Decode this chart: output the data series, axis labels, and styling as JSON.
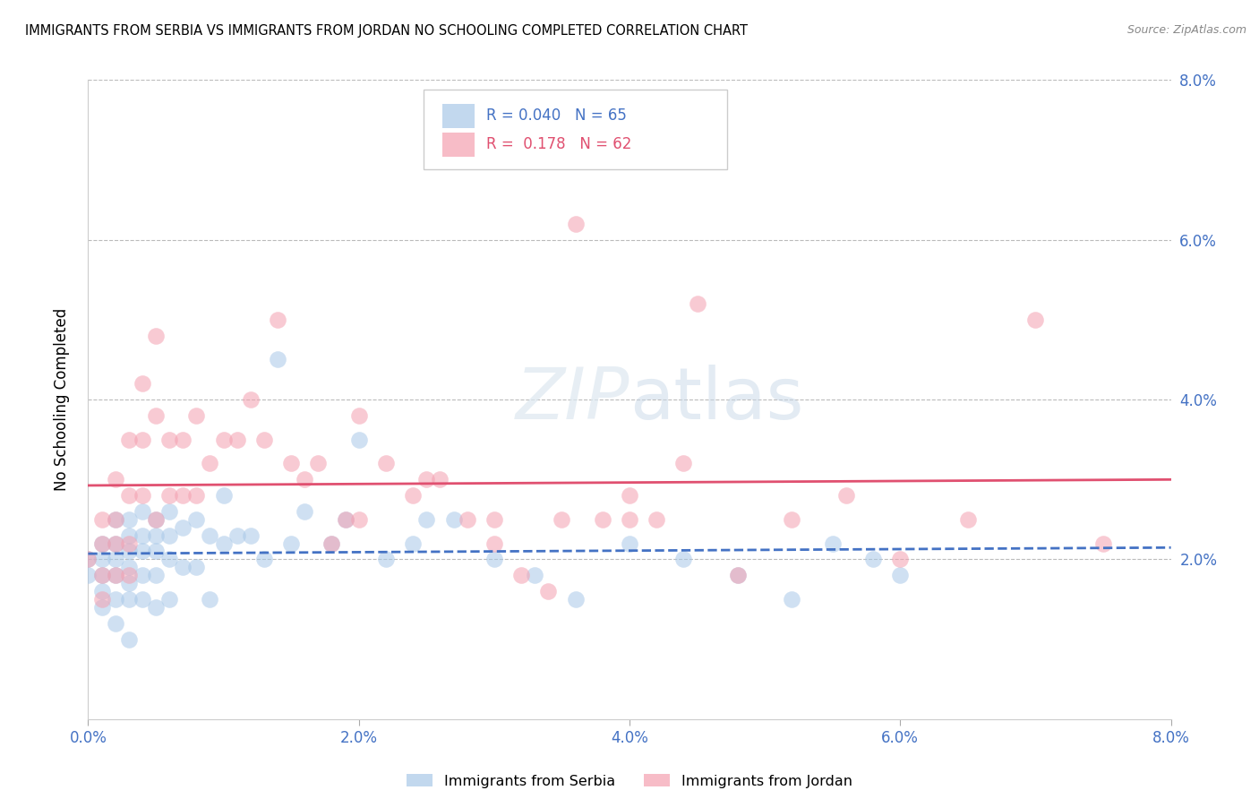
{
  "title": "IMMIGRANTS FROM SERBIA VS IMMIGRANTS FROM JORDAN NO SCHOOLING COMPLETED CORRELATION CHART",
  "source": "Source: ZipAtlas.com",
  "ylabel": "No Schooling Completed",
  "xlim": [
    0.0,
    0.08
  ],
  "ylim": [
    0.0,
    0.08
  ],
  "x_ticks": [
    0.0,
    0.02,
    0.04,
    0.06,
    0.08
  ],
  "y_ticks": [
    0.0,
    0.02,
    0.04,
    0.06,
    0.08
  ],
  "series1_color": "#a8c8e8",
  "series2_color": "#f4a0b0",
  "series1_label": "Immigrants from Serbia",
  "series2_label": "Immigrants from Jordan",
  "series1_R": 0.04,
  "series1_N": 65,
  "series2_R": 0.178,
  "series2_N": 62,
  "trend1_color": "#4472c4",
  "trend2_color": "#e05070",
  "watermark": "ZIPatlas",
  "background_color": "#ffffff",
  "grid_color": "#bbbbbb",
  "series1_x": [
    0.0,
    0.0,
    0.001,
    0.001,
    0.001,
    0.001,
    0.001,
    0.002,
    0.002,
    0.002,
    0.002,
    0.002,
    0.002,
    0.003,
    0.003,
    0.003,
    0.003,
    0.003,
    0.003,
    0.003,
    0.004,
    0.004,
    0.004,
    0.004,
    0.004,
    0.005,
    0.005,
    0.005,
    0.005,
    0.005,
    0.006,
    0.006,
    0.006,
    0.006,
    0.007,
    0.007,
    0.008,
    0.008,
    0.009,
    0.009,
    0.01,
    0.01,
    0.011,
    0.012,
    0.013,
    0.014,
    0.015,
    0.016,
    0.018,
    0.019,
    0.02,
    0.022,
    0.024,
    0.025,
    0.027,
    0.03,
    0.033,
    0.036,
    0.04,
    0.044,
    0.048,
    0.052,
    0.055,
    0.058,
    0.06
  ],
  "series1_y": [
    0.02,
    0.018,
    0.022,
    0.02,
    0.018,
    0.016,
    0.014,
    0.025,
    0.022,
    0.02,
    0.018,
    0.015,
    0.012,
    0.025,
    0.023,
    0.021,
    0.019,
    0.017,
    0.015,
    0.01,
    0.026,
    0.023,
    0.021,
    0.018,
    0.015,
    0.025,
    0.023,
    0.021,
    0.018,
    0.014,
    0.026,
    0.023,
    0.02,
    0.015,
    0.024,
    0.019,
    0.025,
    0.019,
    0.023,
    0.015,
    0.028,
    0.022,
    0.023,
    0.023,
    0.02,
    0.045,
    0.022,
    0.026,
    0.022,
    0.025,
    0.035,
    0.02,
    0.022,
    0.025,
    0.025,
    0.02,
    0.018,
    0.015,
    0.022,
    0.02,
    0.018,
    0.015,
    0.022,
    0.02,
    0.018
  ],
  "series2_x": [
    0.0,
    0.001,
    0.001,
    0.001,
    0.001,
    0.002,
    0.002,
    0.002,
    0.002,
    0.003,
    0.003,
    0.003,
    0.003,
    0.004,
    0.004,
    0.004,
    0.005,
    0.005,
    0.005,
    0.006,
    0.006,
    0.007,
    0.007,
    0.008,
    0.008,
    0.009,
    0.01,
    0.011,
    0.012,
    0.013,
    0.014,
    0.015,
    0.016,
    0.017,
    0.018,
    0.019,
    0.02,
    0.022,
    0.024,
    0.026,
    0.028,
    0.03,
    0.032,
    0.034,
    0.036,
    0.038,
    0.04,
    0.042,
    0.044,
    0.048,
    0.052,
    0.056,
    0.06,
    0.065,
    0.07,
    0.075,
    0.02,
    0.025,
    0.03,
    0.035,
    0.04,
    0.045
  ],
  "series2_y": [
    0.02,
    0.025,
    0.022,
    0.018,
    0.015,
    0.03,
    0.025,
    0.022,
    0.018,
    0.035,
    0.028,
    0.022,
    0.018,
    0.042,
    0.035,
    0.028,
    0.048,
    0.038,
    0.025,
    0.035,
    0.028,
    0.035,
    0.028,
    0.038,
    0.028,
    0.032,
    0.035,
    0.035,
    0.04,
    0.035,
    0.05,
    0.032,
    0.03,
    0.032,
    0.022,
    0.025,
    0.038,
    0.032,
    0.028,
    0.03,
    0.025,
    0.022,
    0.018,
    0.016,
    0.062,
    0.025,
    0.028,
    0.025,
    0.032,
    0.018,
    0.025,
    0.028,
    0.02,
    0.025,
    0.05,
    0.022,
    0.025,
    0.03,
    0.025,
    0.025,
    0.025,
    0.052
  ]
}
